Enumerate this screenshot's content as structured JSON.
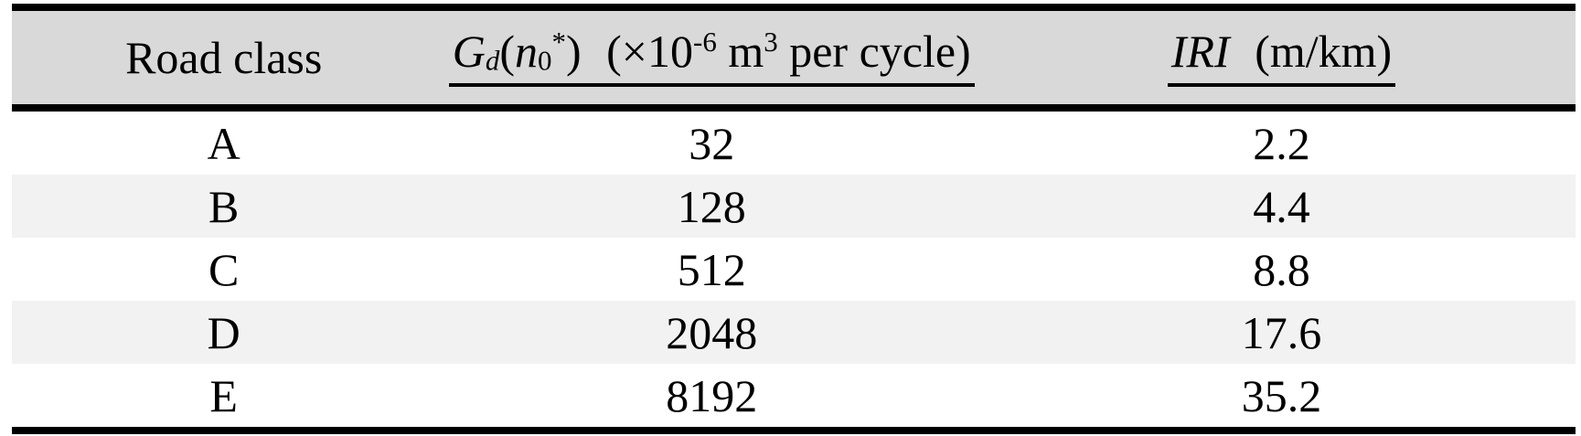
{
  "table": {
    "header": {
      "col1": "Road class",
      "col2": {
        "G": "G",
        "d_sub": "d",
        "paren_open": "(",
        "n": "n",
        "zero_sub": "0",
        "star_sup": "*",
        "paren_close": ")",
        "unit_open": "(×10",
        "exp_sup": "-6",
        "unit_m": " m",
        "cube_sup": "3",
        "unit_rest": " per cycle)"
      },
      "col3": {
        "name": "IRI",
        "unit": "(m/km)"
      }
    },
    "rows": [
      {
        "road_class": "A",
        "gd_value": "32",
        "iri_value": "2.2"
      },
      {
        "road_class": "B",
        "gd_value": "128",
        "iri_value": "4.4"
      },
      {
        "road_class": "C",
        "gd_value": "512",
        "iri_value": "8.8"
      },
      {
        "road_class": "D",
        "gd_value": "2048",
        "iri_value": "17.6"
      },
      {
        "road_class": "E",
        "gd_value": "8192",
        "iri_value": "35.2"
      }
    ]
  },
  "colors": {
    "header_bg": "#d9d9d9",
    "row_bg": "#ffffff",
    "row_alt_bg": "#f2f2f2",
    "border": "#000000",
    "text": "#000000"
  }
}
